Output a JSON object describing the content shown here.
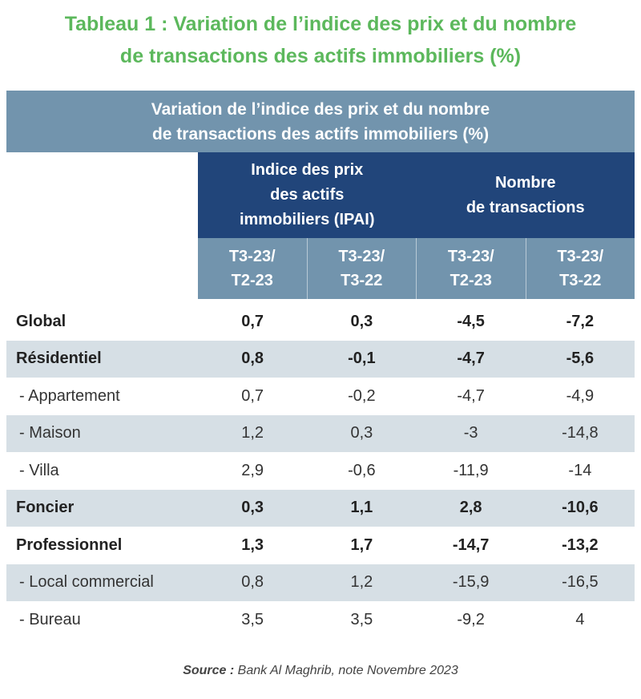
{
  "title": {
    "line1": "Tableau 1 :  Variation de l’indice des prix et du nombre",
    "line2": "de transactions des actifs immobiliers (%)"
  },
  "table": {
    "band": {
      "line1": "Variation de l’indice des prix et du nombre",
      "line2": "de transactions des actifs immobiliers (%)"
    },
    "groups": [
      {
        "lines": [
          "Indice des prix",
          "des actifs",
          "immobiliers (IPAI)"
        ]
      },
      {
        "lines": [
          "Nombre",
          "de transactions"
        ]
      }
    ],
    "columns": [
      {
        "line1": "T3-23/",
        "line2": "T2-23"
      },
      {
        "line1": "T3-23/",
        "line2": "T3-22"
      },
      {
        "line1": "T3-23/",
        "line2": "T2-23"
      },
      {
        "line1": "T3-23/",
        "line2": "T3-22"
      }
    ],
    "rows": [
      {
        "label": "Global",
        "values": [
          "0,7",
          "0,3",
          "-4,5",
          "-7,2"
        ]
      },
      {
        "label": "Résidentiel",
        "values": [
          "0,8",
          "-0,1",
          "-4,7",
          "-5,6"
        ]
      },
      {
        "label": "- Appartement",
        "values": [
          "0,7",
          "-0,2",
          "-4,7",
          "-4,9"
        ]
      },
      {
        "label": "- Maison",
        "values": [
          "1,2",
          "0,3",
          "-3",
          "-14,8"
        ]
      },
      {
        "label": "- Villa",
        "values": [
          "2,9",
          "-0,6",
          "-11,9",
          "-14"
        ]
      },
      {
        "label": "Foncier",
        "values": [
          "0,3",
          "1,1",
          "2,8",
          "-10,6"
        ]
      },
      {
        "label": "Professionnel",
        "values": [
          "1,3",
          "1,7",
          "-14,7",
          "-13,2"
        ]
      },
      {
        "label": "- Local commercial",
        "values": [
          "0,8",
          "1,2",
          "-15,9",
          "-16,5"
        ]
      },
      {
        "label": "- Bureau",
        "values": [
          "3,5",
          "3,5",
          "-9,2",
          "4"
        ]
      }
    ]
  },
  "source": {
    "prefix": "Source :",
    "text": " Bank Al Maghrib, note Novembre 2023"
  },
  "colors": {
    "title_green": "#5cb85c",
    "band_steel": "#7294ad",
    "header_navy": "#21457a",
    "row_shade": "#d6dfe5"
  }
}
